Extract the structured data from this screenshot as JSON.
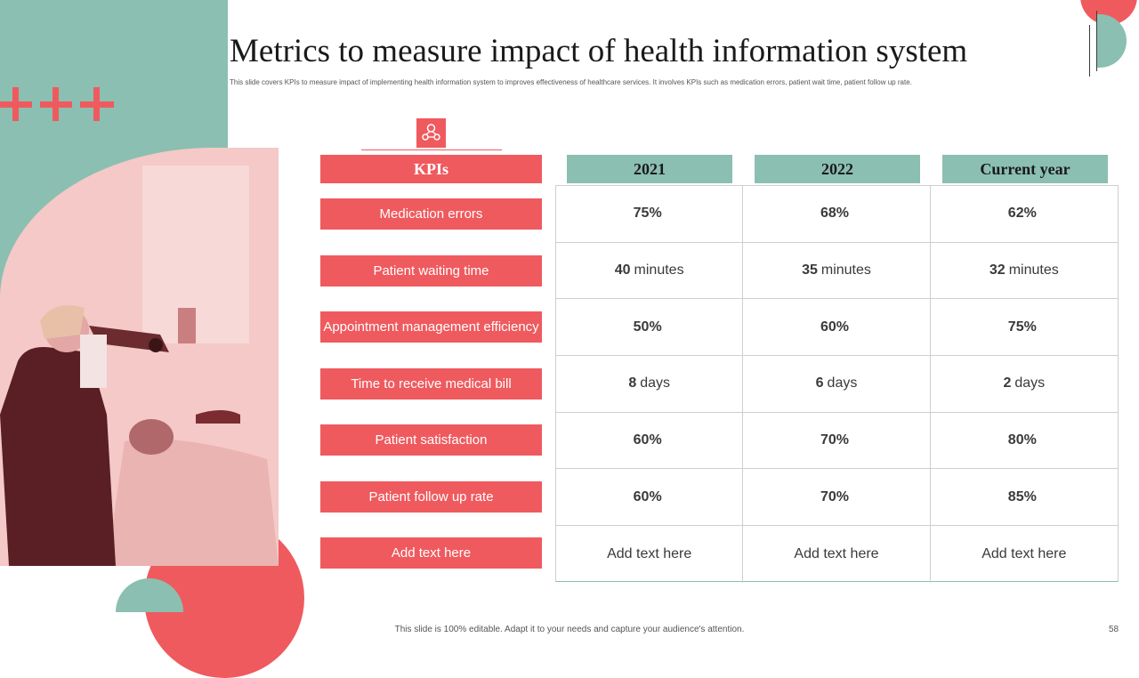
{
  "title": "Metrics to measure impact of health information system",
  "subtitle": "This slide covers KPIs to measure impact of implementing health information system  to improves effectiveness of healthcare services. It involves KPIs such as medication errors, patient wait time, patient follow up rate.",
  "headers": {
    "kpi": "KPIs",
    "y1": "2021",
    "y2": "2022",
    "y3": "Current year"
  },
  "rows": [
    {
      "kpi": "Medication errors",
      "v1": "75%",
      "v1u": "",
      "v2": "68%",
      "v2u": "",
      "v3": "62%",
      "v3u": ""
    },
    {
      "kpi": "Patient waiting time",
      "v1": "40",
      "v1u": "minutes",
      "v2": "35",
      "v2u": "minutes",
      "v3": "32",
      "v3u": "minutes"
    },
    {
      "kpi": "Appointment management efficiency",
      "v1": "50%",
      "v1u": "",
      "v2": "60%",
      "v2u": "",
      "v3": "75%",
      "v3u": ""
    },
    {
      "kpi": "Time to receive medical bill",
      "v1": "8",
      "v1u": "days",
      "v2": "6",
      "v2u": "days",
      "v3": "2",
      "v3u": "days"
    },
    {
      "kpi": "Patient satisfaction",
      "v1": "60%",
      "v1u": "",
      "v2": "70%",
      "v2u": "",
      "v3": "80%",
      "v3u": ""
    },
    {
      "kpi": "Patient follow up rate",
      "v1": "60%",
      "v1u": "",
      "v2": "70%",
      "v2u": "",
      "v3": "85%",
      "v3u": ""
    },
    {
      "kpi": "Add text here",
      "v1": "",
      "v1u": "Add text here",
      "v2": "",
      "v2u": "Add text here",
      "v3": "",
      "v3u": "Add text here"
    }
  ],
  "footer": "This slide is 100% editable. Adapt it to your needs and capture your audience's attention.",
  "page_number": "58",
  "colors": {
    "accent_red": "#ef5a5e",
    "accent_teal": "#8bbfb1"
  },
  "icons": {
    "plus": "plus-icon",
    "kpi": "medical-network-icon"
  }
}
